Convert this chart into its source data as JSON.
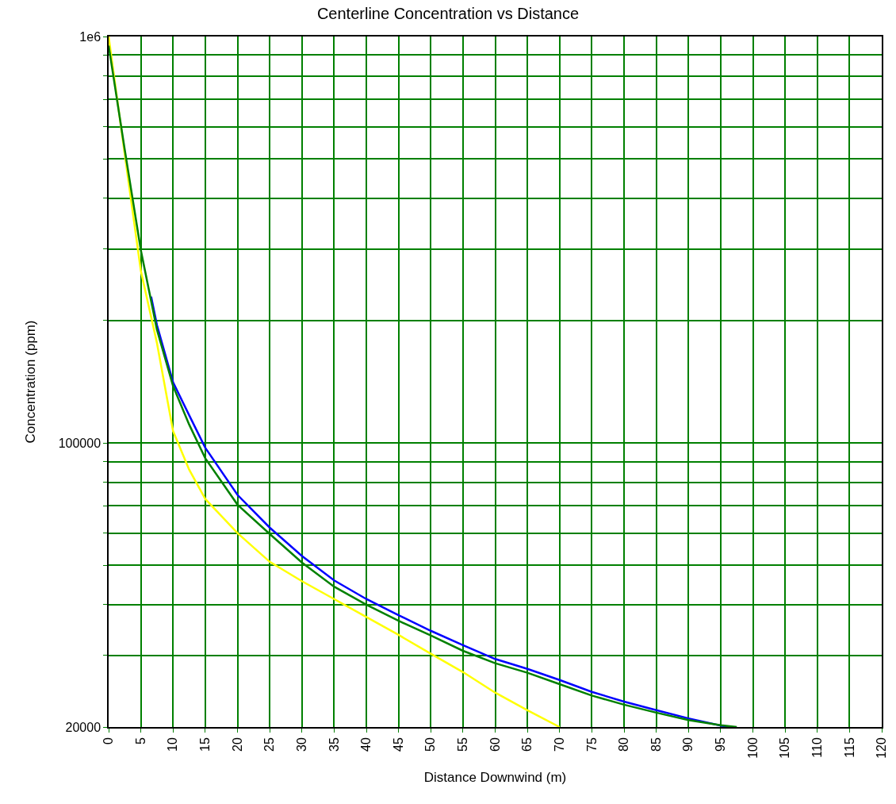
{
  "chart_data": {
    "type": "line",
    "title": "Centerline Concentration vs Distance",
    "xlabel": "Distance Downwind (m)",
    "ylabel": "Concentration (ppm)",
    "log": "y",
    "grid": true,
    "marker": "none",
    "line_style": "solid",
    "xlim": [
      0,
      120
    ],
    "xticks": [
      0,
      5,
      10,
      15,
      20,
      25,
      30,
      35,
      40,
      45,
      50,
      55,
      60,
      65,
      70,
      75,
      80,
      85,
      90,
      95,
      100,
      105,
      110,
      115,
      120
    ],
    "ylim": [
      20000,
      1000000
    ],
    "yticks": [
      {
        "value": 20000,
        "label": "20000"
      },
      {
        "value": 30000,
        "label": null
      },
      {
        "value": 40000,
        "label": null
      },
      {
        "value": 50000,
        "label": null
      },
      {
        "value": 60000,
        "label": null
      },
      {
        "value": 70000,
        "label": null
      },
      {
        "value": 80000,
        "label": null
      },
      {
        "value": 90000,
        "label": null
      },
      {
        "value": 100000,
        "label": "100000"
      },
      {
        "value": 200000,
        "label": null
      },
      {
        "value": 300000,
        "label": null
      },
      {
        "value": 400000,
        "label": null
      },
      {
        "value": 500000,
        "label": null
      },
      {
        "value": 600000,
        "label": null
      },
      {
        "value": 700000,
        "label": null
      },
      {
        "value": 800000,
        "label": null
      },
      {
        "value": 900000,
        "label": null
      },
      {
        "value": 1000000,
        "label": "1e6"
      }
    ],
    "series": [
      {
        "color": "#ffff00",
        "x": [
          0,
          2.5,
          5,
          7.5,
          10,
          12.5,
          15,
          20,
          25,
          30,
          35,
          40,
          45,
          50,
          55,
          60,
          65,
          70
        ],
        "values": [
          1000000,
          513000,
          265000,
          176000,
          107000,
          86000,
          72800,
          60000,
          51000,
          45700,
          41300,
          37300,
          33700,
          30300,
          27300,
          24300,
          22000,
          20000
        ]
      },
      {
        "color": "#0000ff",
        "x": [
          6.6,
          7.5,
          10,
          12.5,
          15,
          20,
          25,
          30,
          35,
          40,
          45,
          50,
          55,
          60,
          65,
          70,
          75,
          80,
          85,
          90,
          96
        ],
        "values": [
          229000,
          195000,
          141000,
          117000,
          97300,
          74500,
          61900,
          52700,
          45900,
          41300,
          37700,
          34500,
          31800,
          29400,
          27800,
          26100,
          24400,
          23100,
          22000,
          21000,
          20000
        ]
      },
      {
        "color": "#008000",
        "x": [
          0,
          2.5,
          5,
          7.5,
          10,
          12.5,
          15,
          20,
          25,
          30,
          35,
          40,
          45,
          50,
          55,
          60,
          65,
          70,
          75,
          80,
          85,
          90,
          95,
          97.5
        ],
        "values": [
          950000,
          527000,
          298000,
          190000,
          138000,
          111000,
          91700,
          70500,
          59700,
          50800,
          44300,
          40000,
          36500,
          33600,
          30800,
          28700,
          27200,
          25500,
          23900,
          22700,
          21700,
          20800,
          20200,
          20000
        ]
      }
    ]
  }
}
